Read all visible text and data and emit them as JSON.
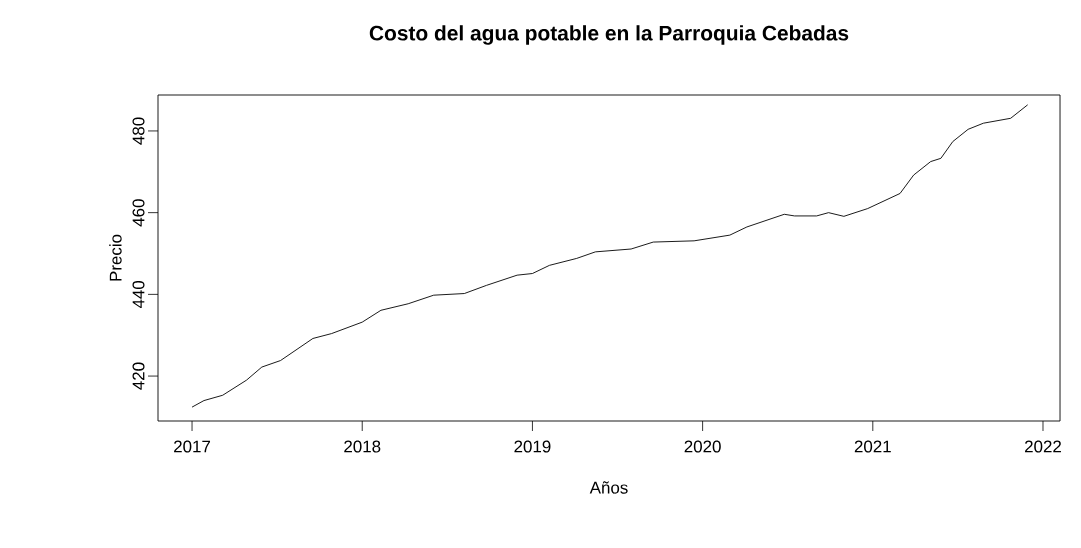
{
  "chart_data": {
    "type": "line",
    "title": "Costo del agua potable en la Parroquia Cebadas",
    "xlabel": "Años",
    "ylabel": "Precio",
    "x": [
      2017.0,
      2017.07,
      2017.18,
      2017.32,
      2017.41,
      2017.52,
      2017.71,
      2017.82,
      2018.0,
      2018.11,
      2018.27,
      2018.42,
      2018.6,
      2018.73,
      2018.91,
      2019.0,
      2019.1,
      2019.26,
      2019.37,
      2019.58,
      2019.71,
      2019.95,
      2020.16,
      2020.26,
      2020.48,
      2020.54,
      2020.67,
      2020.74,
      2020.83,
      2020.97,
      2021.16,
      2021.24,
      2021.34,
      2021.4,
      2021.47,
      2021.56,
      2021.65,
      2021.81,
      2021.91
    ],
    "values": [
      412.4,
      414.0,
      415.3,
      419.0,
      422.2,
      423.8,
      429.2,
      430.4,
      433.2,
      436.1,
      437.7,
      439.8,
      440.2,
      442.2,
      444.7,
      445.1,
      447.1,
      448.8,
      450.4,
      451.1,
      452.8,
      453.1,
      454.5,
      456.5,
      459.6,
      459.2,
      459.2,
      460.0,
      459.1,
      461.0,
      464.7,
      469.2,
      472.5,
      473.3,
      477.4,
      480.4,
      481.9,
      483.1,
      486.4
    ],
    "color": "#000000",
    "xlim": [
      2016.8,
      2022.1
    ],
    "ylim": [
      409,
      488.8
    ],
    "xticks": [
      2017,
      2018,
      2019,
      2020,
      2021,
      2022
    ],
    "yticks": [
      420,
      440,
      460,
      480
    ],
    "grid": false,
    "marker": "none",
    "line_style": "solid"
  }
}
